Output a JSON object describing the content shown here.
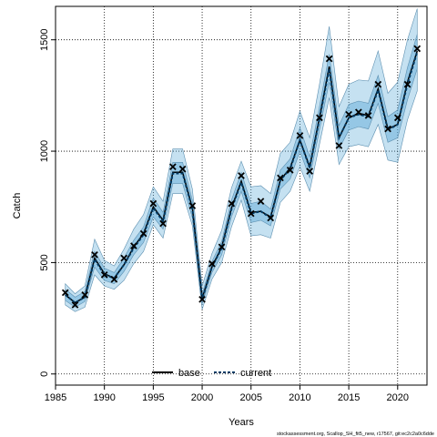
{
  "chart_data": {
    "type": "line",
    "title": "",
    "xlabel": "Years",
    "ylabel": "Catch",
    "xlim": [
      1985,
      2023
    ],
    "ylim": [
      -50,
      1650
    ],
    "x_ticks": [
      1985,
      1990,
      1995,
      2000,
      2005,
      2010,
      2015,
      2020
    ],
    "y_ticks": [
      0,
      500,
      1000,
      1500
    ],
    "grid": true,
    "legend_position": "bottom",
    "footer": "stockassessment.org, Scallop_SH_fit5_new, r17567, git:ec2c2a0c6dde",
    "x": [
      1986,
      1987,
      1988,
      1989,
      1990,
      1991,
      1992,
      1993,
      1994,
      1995,
      1996,
      1997,
      1998,
      1999,
      2000,
      2001,
      2002,
      2003,
      2004,
      2005,
      2006,
      2007,
      2008,
      2009,
      2010,
      2011,
      2012,
      2013,
      2014,
      2015,
      2016,
      2017,
      2018,
      2019,
      2020,
      2021,
      2022
    ],
    "observed": [
      365,
      310,
      355,
      535,
      445,
      425,
      520,
      575,
      630,
      765,
      675,
      930,
      920,
      755,
      335,
      495,
      570,
      765,
      890,
      720,
      775,
      700,
      880,
      915,
      1070,
      910,
      1150,
      1415,
      1025,
      1165,
      1175,
      1160,
      1300,
      1100,
      1150,
      1300,
      1460
    ],
    "series": [
      {
        "name": "base",
        "style": "solid",
        "color": "#000000",
        "values": [
          355,
          320,
          345,
          520,
          450,
          430,
          490,
          570,
          630,
          750,
          690,
          905,
          905,
          745,
          340,
          480,
          570,
          745,
          865,
          725,
          730,
          705,
          870,
          925,
          1050,
          930,
          1150,
          1380,
          1060,
          1150,
          1170,
          1160,
          1280,
          1100,
          1120,
          1310,
          1450
        ],
        "lower": [
          310,
          280,
          300,
          445,
          395,
          380,
          420,
          495,
          550,
          670,
          610,
          810,
          810,
          665,
          290,
          425,
          500,
          660,
          780,
          620,
          625,
          610,
          770,
          820,
          930,
          820,
          1030,
          1240,
          940,
          1020,
          1030,
          1020,
          1120,
          960,
          950,
          1140,
          1270
        ],
        "upper": [
          405,
          360,
          395,
          605,
          510,
          485,
          560,
          650,
          715,
          840,
          775,
          1010,
          1010,
          830,
          395,
          540,
          645,
          835,
          955,
          840,
          845,
          810,
          990,
          1040,
          1180,
          1060,
          1300,
          1560,
          1200,
          1300,
          1320,
          1315,
          1450,
          1260,
          1310,
          1500,
          1640
        ]
      },
      {
        "name": "current",
        "style": "dashed",
        "color": "#003a63",
        "values": [
          355,
          320,
          345,
          515,
          445,
          430,
          490,
          565,
          625,
          745,
          685,
          900,
          900,
          740,
          335,
          480,
          565,
          740,
          860,
          720,
          730,
          700,
          870,
          920,
          1050,
          925,
          1145,
          1370,
          1060,
          1150,
          1165,
          1155,
          1275,
          1095,
          1120,
          1300,
          1445
        ],
        "lower": [
          330,
          300,
          325,
          480,
          420,
          405,
          460,
          535,
          590,
          705,
          650,
          855,
          855,
          700,
          315,
          455,
          535,
          705,
          820,
          680,
          690,
          665,
          830,
          875,
          1000,
          880,
          1095,
          1310,
          1010,
          1095,
          1110,
          1100,
          1215,
          1040,
          1060,
          1230,
          1370
        ],
        "upper": [
          380,
          345,
          370,
          550,
          475,
          455,
          520,
          600,
          660,
          790,
          725,
          950,
          950,
          780,
          360,
          505,
          595,
          780,
          905,
          765,
          775,
          740,
          915,
          965,
          1105,
          975,
          1200,
          1435,
          1115,
          1210,
          1225,
          1215,
          1340,
          1155,
          1185,
          1375,
          1525
        ]
      }
    ]
  },
  "colors": {
    "band_fill": "#5aa9d6",
    "band_stroke": "#5c8fb0",
    "observed_marker": "#000000",
    "grid": "#000000"
  }
}
